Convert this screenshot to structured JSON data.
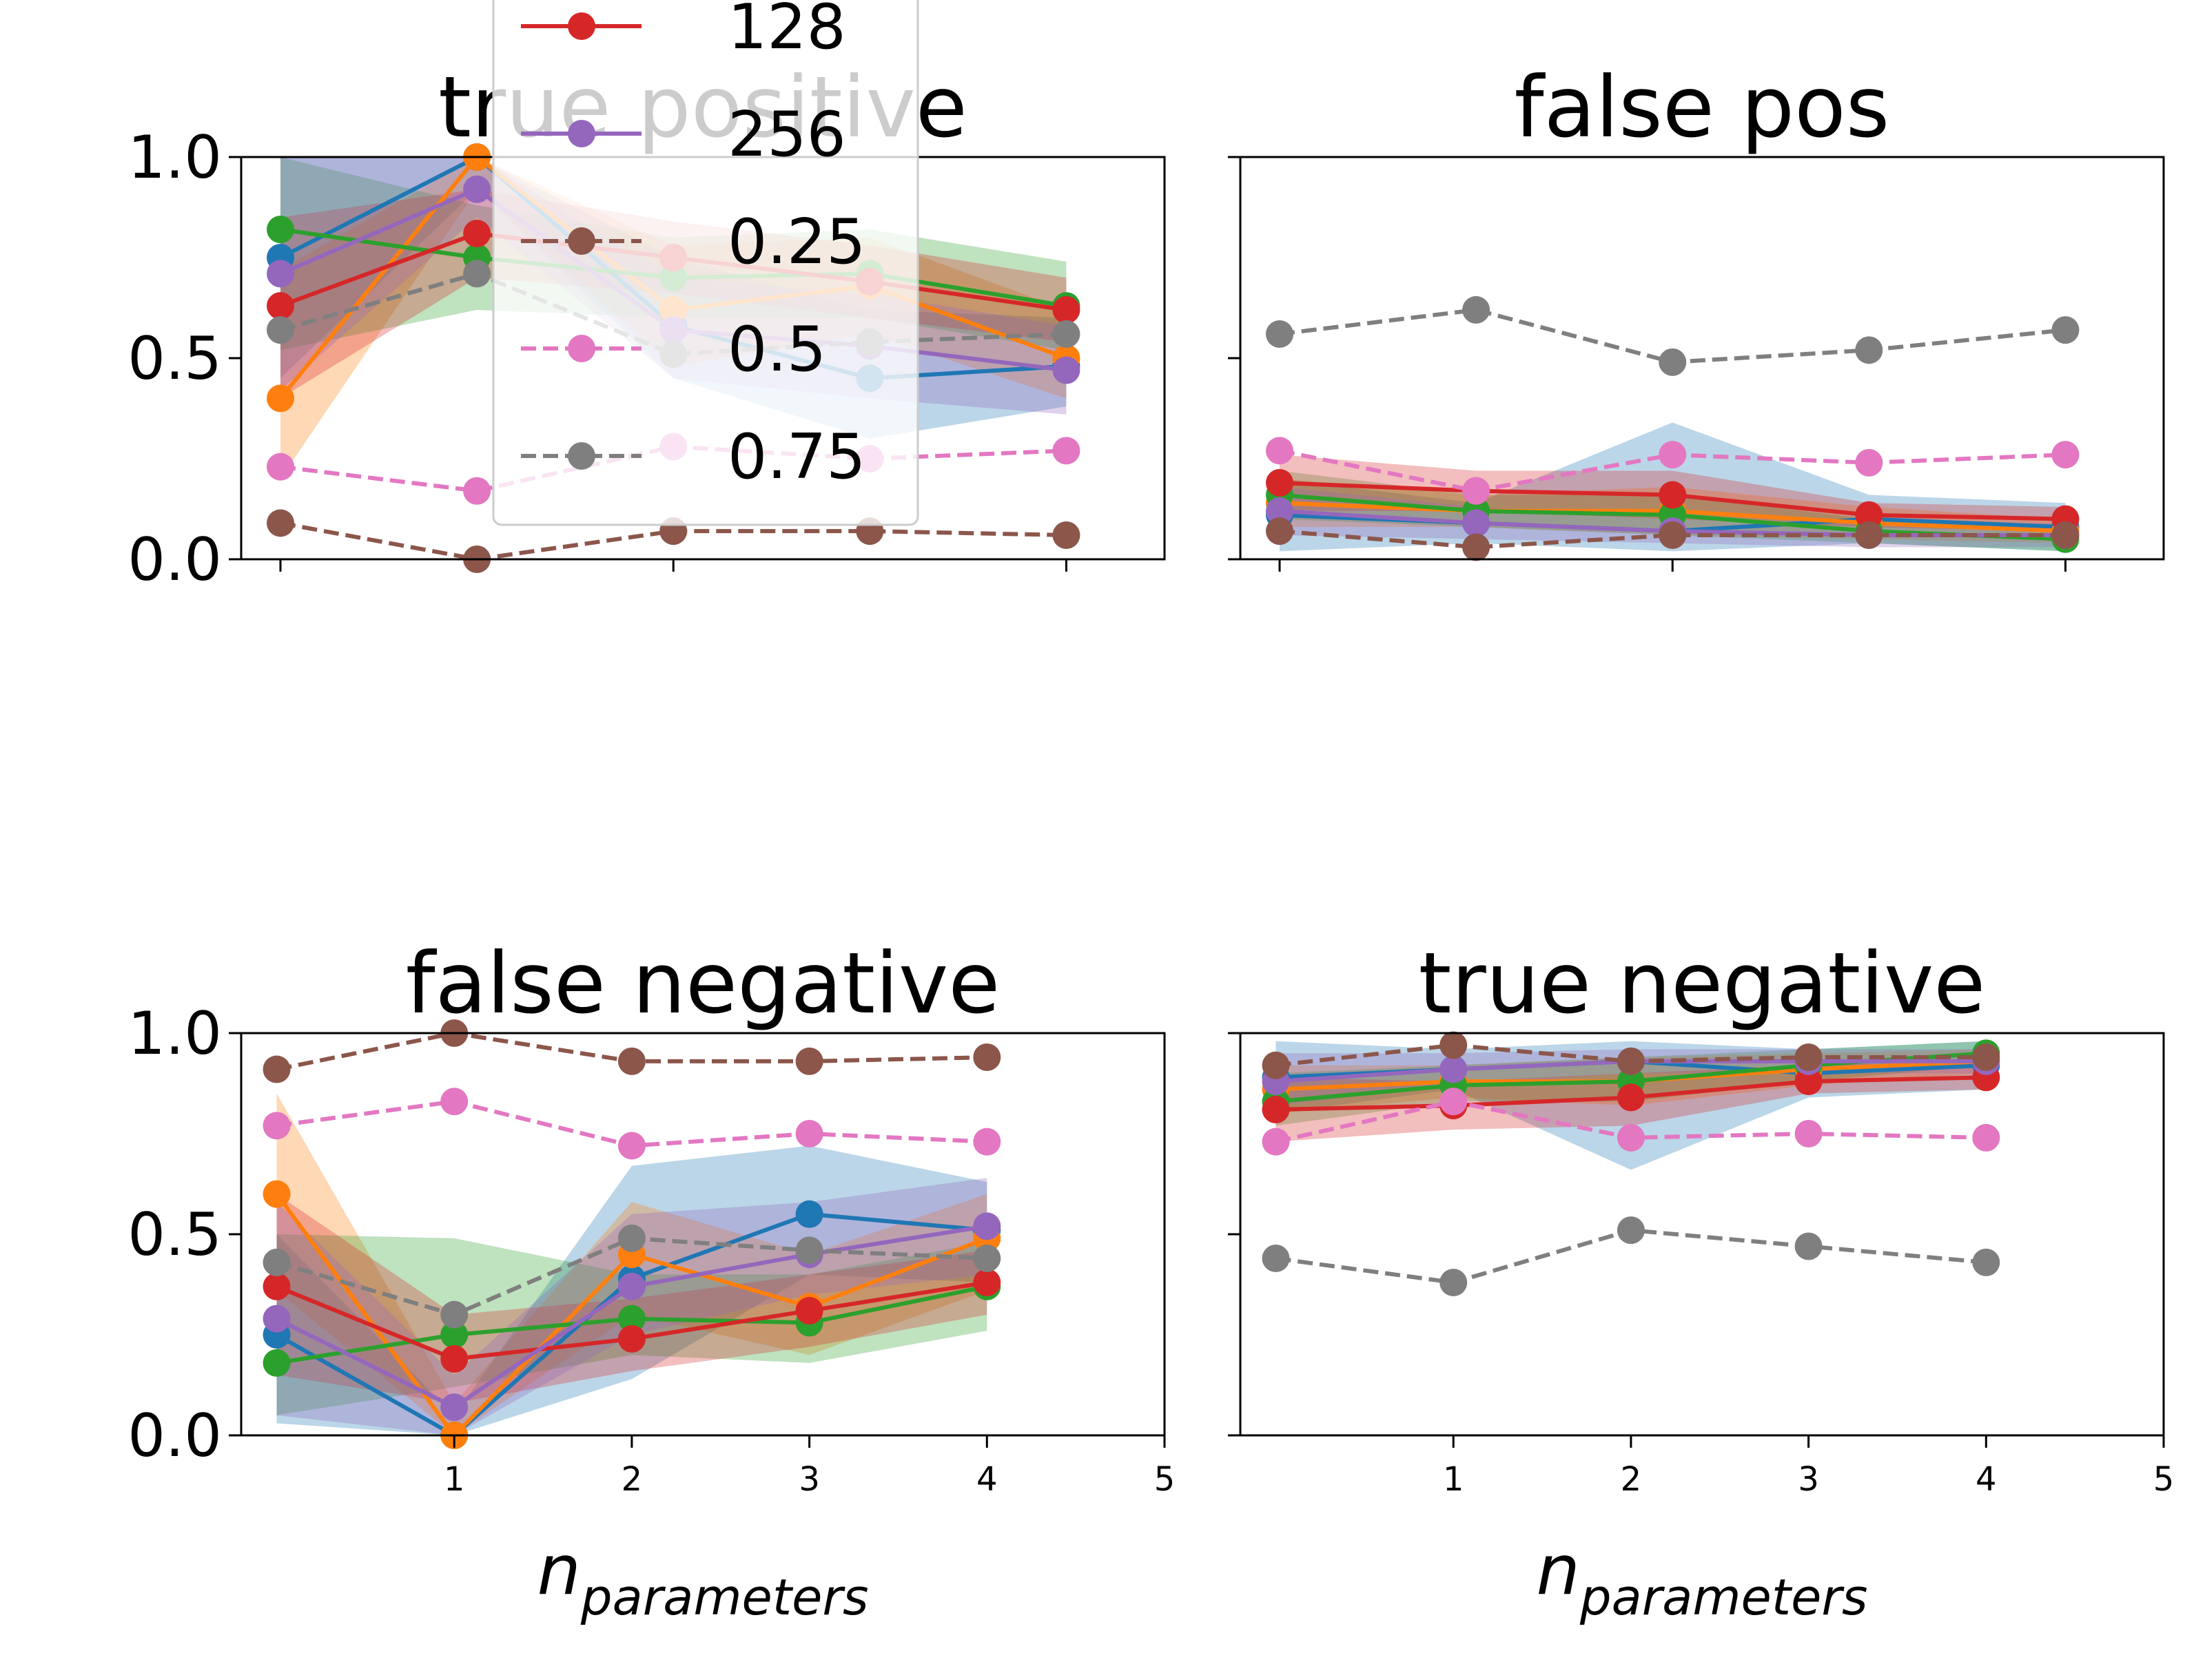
{
  "chart_data": [
    {
      "type": "line",
      "title": "true positive",
      "xlabel": "",
      "xlim": [
        -0.2,
        4.5
      ],
      "ylim": [
        0,
        1
      ],
      "yticks": [
        0.0,
        0.5,
        1.0
      ],
      "ytick_labels": [
        "0.0",
        "0.5",
        "1.0"
      ],
      "x": [
        0,
        1,
        2,
        3,
        4
      ],
      "series": [
        {
          "color": "#1f77b4",
          "dashed": false,
          "values": [
            0.75,
            1.0,
            0.58,
            0.45,
            0.48
          ],
          "band": [
            [
              0.45,
              1.0
            ],
            [
              0.92,
              1.0
            ],
            [
              0.45,
              0.75
            ],
            [
              0.3,
              0.62
            ],
            [
              0.38,
              0.6
            ]
          ]
        },
        {
          "color": "#ff7f0e",
          "dashed": false,
          "values": [
            0.4,
            1.0,
            0.62,
            0.68,
            0.5
          ],
          "band": [
            [
              0.2,
              0.72
            ],
            [
              0.92,
              1.0
            ],
            [
              0.48,
              0.78
            ],
            [
              0.56,
              0.8
            ],
            [
              0.4,
              0.62
            ]
          ]
        },
        {
          "color": "#2ca02c",
          "dashed": false,
          "values": [
            0.82,
            0.75,
            0.7,
            0.71,
            0.63
          ],
          "band": [
            [
              0.52,
              1.0
            ],
            [
              0.62,
              0.88
            ],
            [
              0.6,
              0.8
            ],
            [
              0.6,
              0.82
            ],
            [
              0.52,
              0.74
            ]
          ]
        },
        {
          "color": "#d62728",
          "name": "128",
          "dashed": false,
          "values": [
            0.63,
            0.81,
            0.75,
            0.69,
            0.62
          ],
          "band": [
            [
              0.4,
              0.85
            ],
            [
              0.7,
              0.92
            ],
            [
              0.66,
              0.84
            ],
            [
              0.6,
              0.78
            ],
            [
              0.54,
              0.7
            ]
          ]
        },
        {
          "color": "#9467bd",
          "name": "256",
          "dashed": false,
          "values": [
            0.71,
            0.92,
            0.57,
            0.53,
            0.47
          ],
          "band": [
            [
              0.42,
              1.0
            ],
            [
              0.85,
              1.0
            ],
            [
              0.45,
              0.7
            ],
            [
              0.4,
              0.66
            ],
            [
              0.36,
              0.58
            ]
          ]
        },
        {
          "color": "#8c564b",
          "name": "0.25",
          "dashed": true,
          "values": [
            0.09,
            0.0,
            0.07,
            0.07,
            0.06
          ]
        },
        {
          "color": "#e377c2",
          "name": "0.5",
          "dashed": true,
          "values": [
            0.23,
            0.17,
            0.28,
            0.25,
            0.27
          ]
        },
        {
          "color": "#7f7f7f",
          "name": "0.75",
          "dashed": true,
          "values": [
            0.57,
            0.71,
            0.51,
            0.54,
            0.56
          ]
        }
      ],
      "legend": "top-center"
    },
    {
      "type": "line",
      "title": "false pos",
      "xlabel": "",
      "xlim": [
        -0.2,
        4.5
      ],
      "ylim": [
        0,
        1
      ],
      "yticks": [
        0.0,
        0.5,
        1.0
      ],
      "ytick_labels": [
        "",
        "",
        ""
      ],
      "x": [
        0,
        1,
        2,
        3,
        4
      ],
      "series": [
        {
          "color": "#1f77b4",
          "dashed": false,
          "values": [
            0.11,
            0.09,
            0.07,
            0.1,
            0.08
          ],
          "band": [
            [
              0.02,
              0.2
            ],
            [
              0.04,
              0.14
            ],
            [
              0.02,
              0.34
            ],
            [
              0.04,
              0.16
            ],
            [
              0.02,
              0.14
            ]
          ]
        },
        {
          "color": "#ff7f0e",
          "dashed": false,
          "values": [
            0.14,
            0.12,
            0.12,
            0.09,
            0.07
          ],
          "band": [
            [
              0.08,
              0.2
            ],
            [
              0.08,
              0.16
            ],
            [
              0.06,
              0.18
            ],
            [
              0.05,
              0.13
            ],
            [
              0.04,
              0.1
            ]
          ]
        },
        {
          "color": "#2ca02c",
          "dashed": false,
          "values": [
            0.16,
            0.12,
            0.11,
            0.07,
            0.05
          ],
          "band": [
            [
              0.1,
              0.22
            ],
            [
              0.08,
              0.16
            ],
            [
              0.06,
              0.16
            ],
            [
              0.04,
              0.1
            ],
            [
              0.02,
              0.08
            ]
          ]
        },
        {
          "color": "#d62728",
          "dashed": false,
          "values": [
            0.19,
            0.17,
            0.16,
            0.11,
            0.1
          ],
          "band": [
            [
              0.12,
              0.26
            ],
            [
              0.12,
              0.22
            ],
            [
              0.1,
              0.22
            ],
            [
              0.08,
              0.14
            ],
            [
              0.07,
              0.13
            ]
          ]
        },
        {
          "color": "#9467bd",
          "dashed": false,
          "values": [
            0.12,
            0.09,
            0.07,
            0.06,
            0.06
          ],
          "band": [
            [
              0.06,
              0.18
            ],
            [
              0.05,
              0.13
            ],
            [
              0.04,
              0.1
            ],
            [
              0.03,
              0.09
            ],
            [
              0.03,
              0.09
            ]
          ]
        },
        {
          "color": "#8c564b",
          "dashed": true,
          "values": [
            0.07,
            0.03,
            0.06,
            0.06,
            0.06
          ]
        },
        {
          "color": "#e377c2",
          "dashed": true,
          "values": [
            0.27,
            0.17,
            0.26,
            0.24,
            0.26
          ]
        },
        {
          "color": "#7f7f7f",
          "dashed": true,
          "values": [
            0.56,
            0.62,
            0.49,
            0.52,
            0.57
          ]
        }
      ]
    },
    {
      "type": "line",
      "title": "false negative",
      "xlabel": "n",
      "xlabel_sub": "parameters",
      "xlim": [
        -0.2,
        5
      ],
      "ylim": [
        0,
        1
      ],
      "yticks": [
        0.0,
        0.5,
        1.0
      ],
      "ytick_labels": [
        "0.0",
        "0.5",
        "1.0"
      ],
      "xticks": [
        1,
        2,
        3,
        4,
        5
      ],
      "xtick_labels": [
        "1",
        "2",
        "3",
        "4",
        "5"
      ],
      "x": [
        0,
        1,
        2,
        3,
        4
      ],
      "series": [
        {
          "color": "#1f77b4",
          "dashed": false,
          "values": [
            0.25,
            0.0,
            0.39,
            0.55,
            0.51
          ],
          "band": [
            [
              0.03,
              0.5
            ],
            [
              0.0,
              0.05
            ],
            [
              0.14,
              0.67
            ],
            [
              0.4,
              0.72
            ],
            [
              0.38,
              0.63
            ]
          ]
        },
        {
          "color": "#ff7f0e",
          "dashed": false,
          "values": [
            0.6,
            0.0,
            0.45,
            0.32,
            0.49
          ],
          "band": [
            [
              0.36,
              0.85
            ],
            [
              0.0,
              0.08
            ],
            [
              0.3,
              0.58
            ],
            [
              0.2,
              0.45
            ],
            [
              0.36,
              0.6
            ]
          ]
        },
        {
          "color": "#2ca02c",
          "dashed": false,
          "values": [
            0.18,
            0.25,
            0.29,
            0.28,
            0.37
          ],
          "band": [
            [
              0.05,
              0.5
            ],
            [
              0.12,
              0.49
            ],
            [
              0.2,
              0.4
            ],
            [
              0.18,
              0.4
            ],
            [
              0.26,
              0.48
            ]
          ]
        },
        {
          "color": "#d62728",
          "dashed": false,
          "values": [
            0.37,
            0.19,
            0.24,
            0.31,
            0.38
          ],
          "band": [
            [
              0.15,
              0.6
            ],
            [
              0.08,
              0.3
            ],
            [
              0.16,
              0.34
            ],
            [
              0.22,
              0.4
            ],
            [
              0.3,
              0.46
            ]
          ]
        },
        {
          "color": "#9467bd",
          "dashed": false,
          "values": [
            0.29,
            0.07,
            0.37,
            0.45,
            0.52
          ],
          "band": [
            [
              0.05,
              0.58
            ],
            [
              0.0,
              0.15
            ],
            [
              0.25,
              0.55
            ],
            [
              0.35,
              0.58
            ],
            [
              0.4,
              0.64
            ]
          ]
        },
        {
          "color": "#8c564b",
          "dashed": true,
          "values": [
            0.91,
            1.0,
            0.93,
            0.93,
            0.94
          ]
        },
        {
          "color": "#e377c2",
          "dashed": true,
          "values": [
            0.77,
            0.83,
            0.72,
            0.75,
            0.73
          ]
        },
        {
          "color": "#7f7f7f",
          "dashed": true,
          "values": [
            0.43,
            0.3,
            0.49,
            0.46,
            0.44
          ]
        }
      ]
    },
    {
      "type": "line",
      "title": "true negative",
      "xlabel": "n",
      "xlabel_sub": "parameters",
      "xlim": [
        -0.2,
        5
      ],
      "ylim": [
        0,
        1
      ],
      "yticks": [
        0.0,
        0.5,
        1.0
      ],
      "ytick_labels": [
        "",
        "",
        ""
      ],
      "xticks": [
        1,
        2,
        3,
        4,
        5
      ],
      "xtick_labels": [
        "1",
        "2",
        "3",
        "4",
        "5"
      ],
      "x": [
        0,
        1,
        2,
        3,
        4
      ],
      "series": [
        {
          "color": "#1f77b4",
          "dashed": false,
          "values": [
            0.89,
            0.91,
            0.93,
            0.9,
            0.92
          ],
          "band": [
            [
              0.8,
              0.98
            ],
            [
              0.86,
              0.96
            ],
            [
              0.66,
              0.98
            ],
            [
              0.84,
              0.96
            ],
            [
              0.86,
              0.98
            ]
          ]
        },
        {
          "color": "#ff7f0e",
          "dashed": false,
          "values": [
            0.86,
            0.88,
            0.88,
            0.91,
            0.93
          ],
          "band": [
            [
              0.8,
              0.92
            ],
            [
              0.84,
              0.92
            ],
            [
              0.82,
              0.94
            ],
            [
              0.87,
              0.95
            ],
            [
              0.9,
              0.96
            ]
          ]
        },
        {
          "color": "#2ca02c",
          "dashed": false,
          "values": [
            0.83,
            0.87,
            0.88,
            0.92,
            0.95
          ],
          "band": [
            [
              0.77,
              0.9
            ],
            [
              0.83,
              0.92
            ],
            [
              0.83,
              0.94
            ],
            [
              0.88,
              0.96
            ],
            [
              0.92,
              0.98
            ]
          ]
        },
        {
          "color": "#d62728",
          "dashed": false,
          "values": [
            0.81,
            0.82,
            0.84,
            0.88,
            0.89
          ],
          "band": [
            [
              0.73,
              0.89
            ],
            [
              0.76,
              0.88
            ],
            [
              0.77,
              0.9
            ],
            [
              0.85,
              0.92
            ],
            [
              0.86,
              0.93
            ]
          ]
        },
        {
          "color": "#9467bd",
          "dashed": false,
          "values": [
            0.88,
            0.91,
            0.93,
            0.93,
            0.93
          ],
          "band": [
            [
              0.82,
              0.95
            ],
            [
              0.87,
              0.95
            ],
            [
              0.9,
              0.96
            ],
            [
              0.9,
              0.96
            ],
            [
              0.9,
              0.96
            ]
          ]
        },
        {
          "color": "#8c564b",
          "dashed": true,
          "values": [
            0.92,
            0.97,
            0.93,
            0.94,
            0.94
          ]
        },
        {
          "color": "#e377c2",
          "dashed": true,
          "values": [
            0.73,
            0.83,
            0.74,
            0.75,
            0.74
          ]
        },
        {
          "color": "#7f7f7f",
          "dashed": true,
          "values": [
            0.44,
            0.38,
            0.51,
            0.47,
            0.43
          ]
        }
      ]
    }
  ]
}
